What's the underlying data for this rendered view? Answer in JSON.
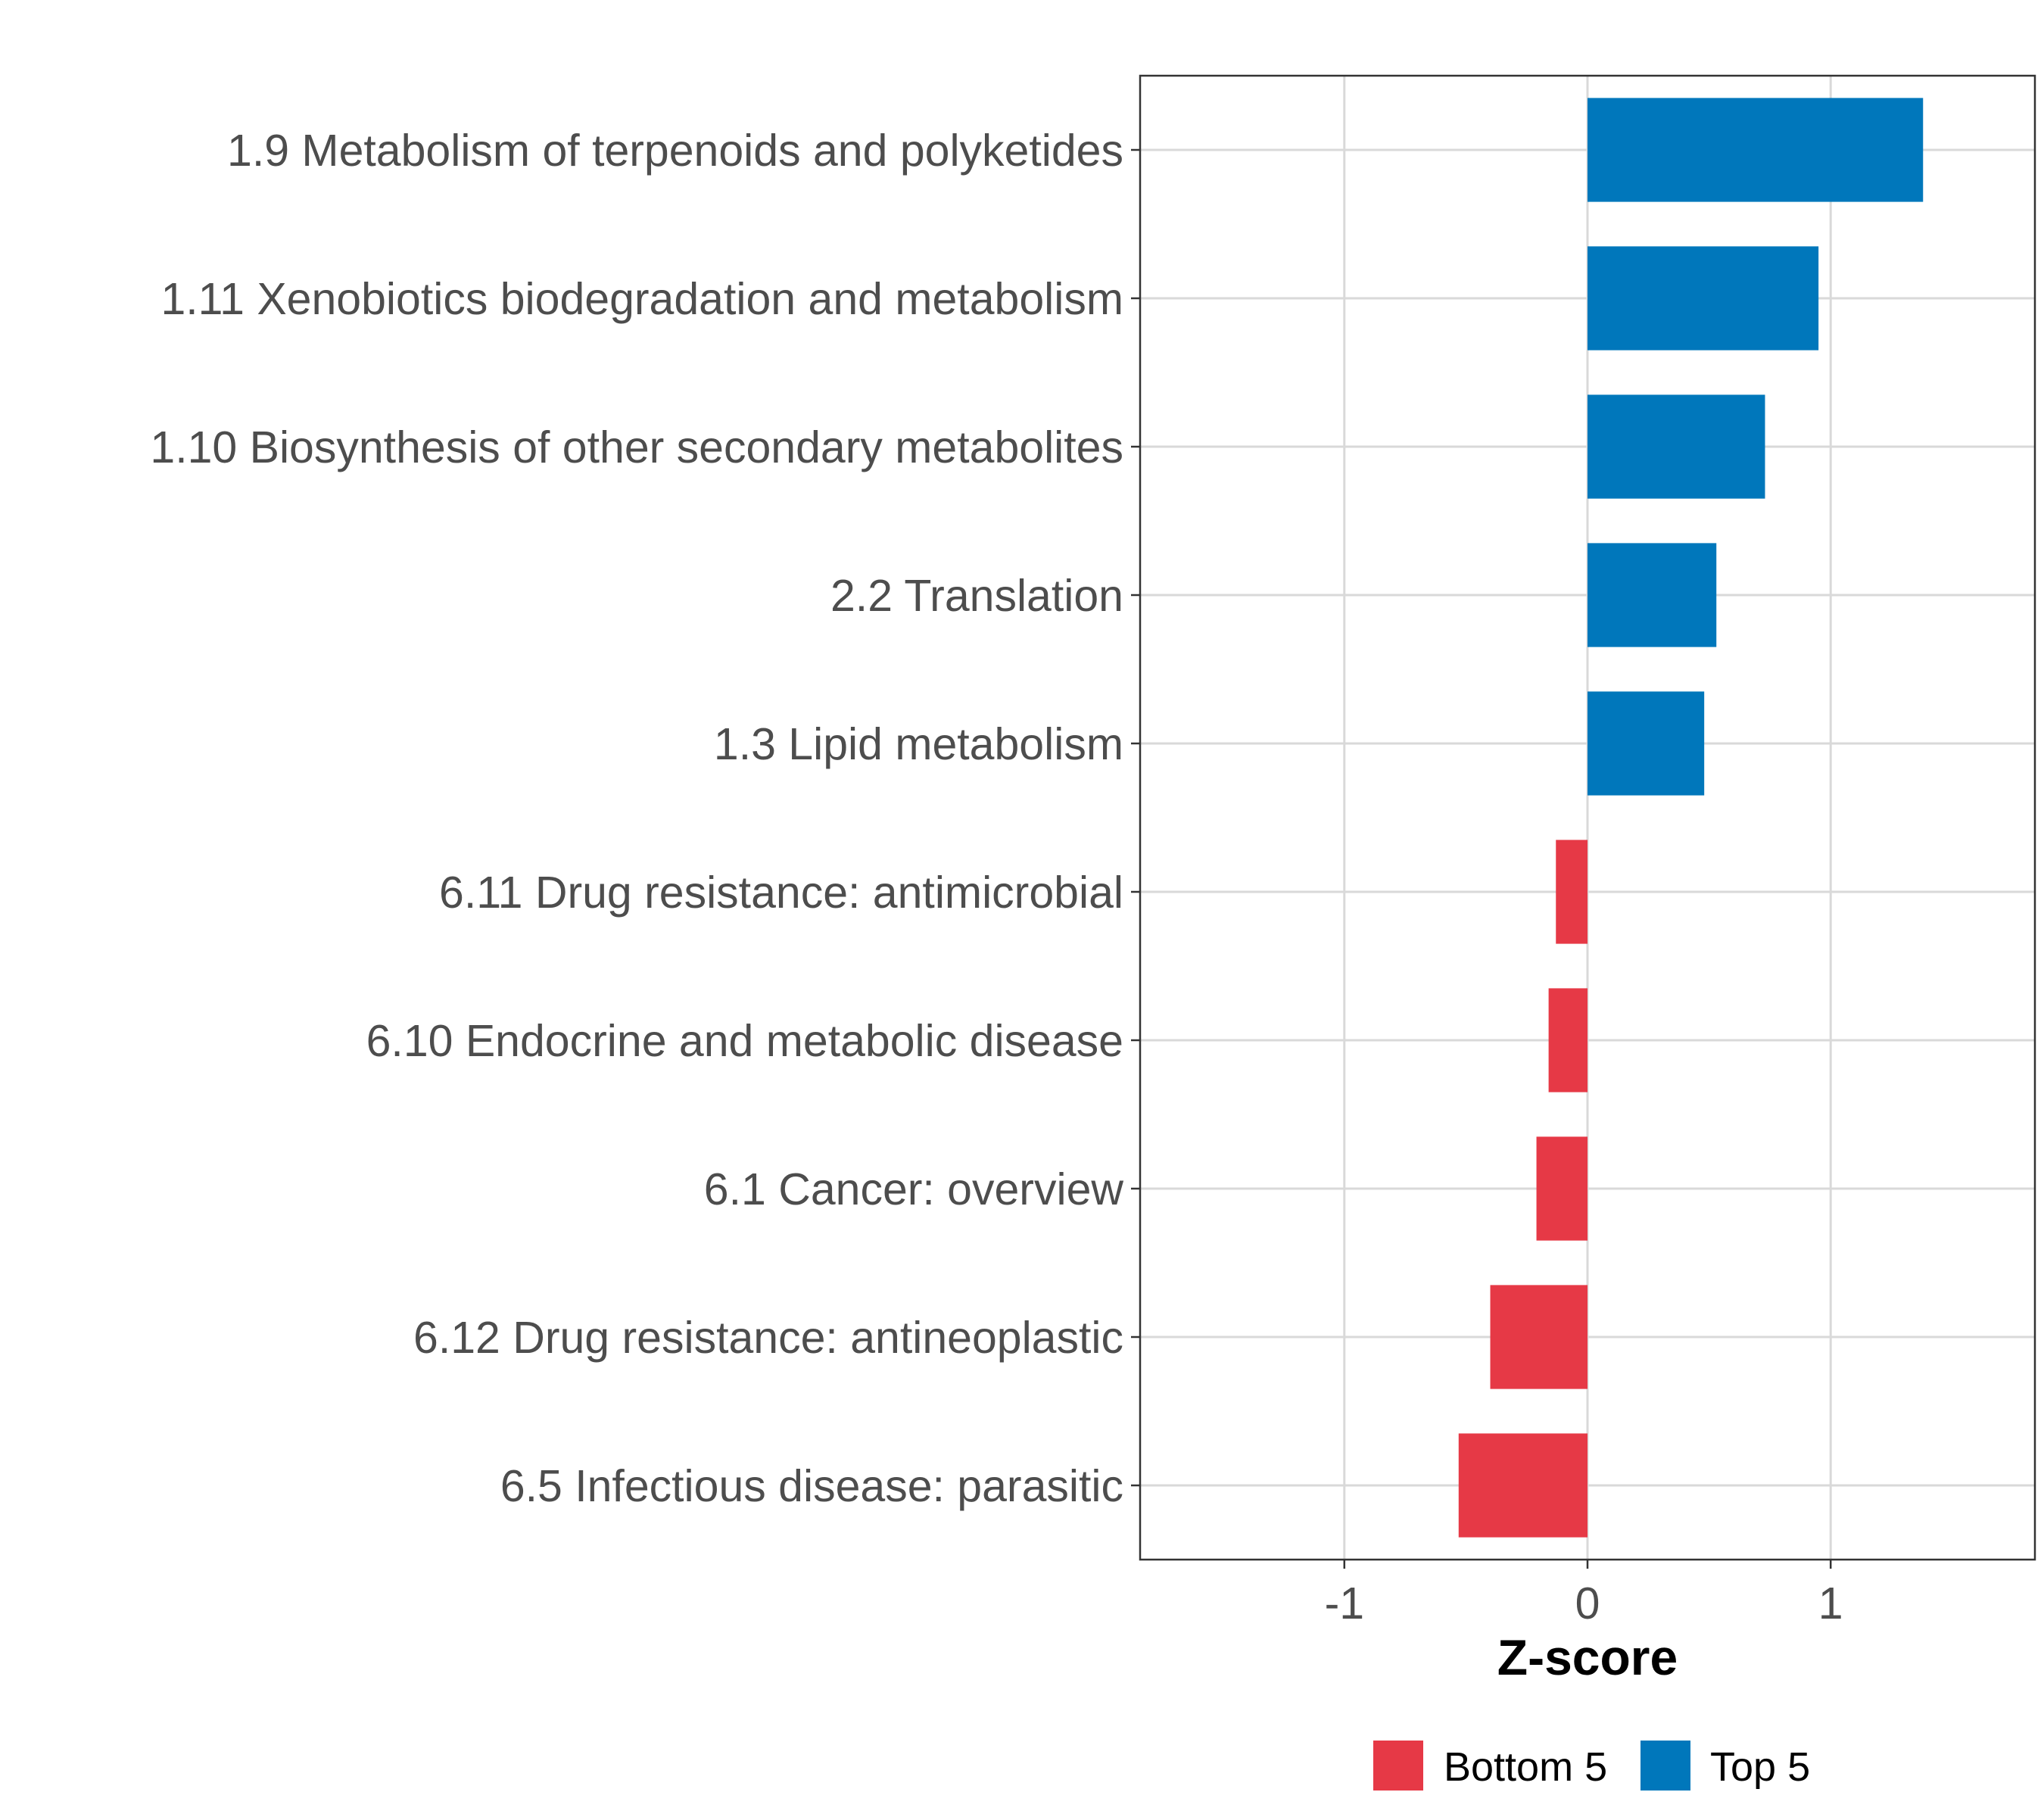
{
  "chart_data": {
    "type": "bar",
    "orientation": "horizontal",
    "title": "",
    "xlabel": "Z-score",
    "ylabel": "",
    "xlim": [
      -1.84,
      1.84
    ],
    "xticks": [
      -1,
      0,
      1
    ],
    "xtick_labels": [
      "-1",
      "0",
      "1"
    ],
    "grid": true,
    "legend_position": "bottom",
    "categories": [
      "1.9 Metabolism of terpenoids and polyketides",
      "1.11 Xenobiotics biodegradation and metabolism",
      "1.10 Biosynthesis of other secondary metabolites",
      "2.2 Translation",
      "1.3 Lipid metabolism",
      "6.11 Drug resistance: antimicrobial",
      "6.10 Endocrine and metabolic disease",
      "6.1 Cancer: overview",
      "6.12 Drug resistance: antineoplastic",
      "6.5 Infectious disease: parasitic"
    ],
    "values": [
      1.38,
      0.95,
      0.73,
      0.53,
      0.48,
      -0.13,
      -0.16,
      -0.21,
      -0.4,
      -0.53
    ],
    "groups": [
      "Top 5",
      "Top 5",
      "Top 5",
      "Top 5",
      "Top 5",
      "Bottom 5",
      "Bottom 5",
      "Bottom 5",
      "Bottom 5",
      "Bottom 5"
    ],
    "legend": [
      {
        "label": "Bottom 5",
        "color": "#E63946"
      },
      {
        "label": "Top 5",
        "color": "#0077BB"
      }
    ]
  }
}
